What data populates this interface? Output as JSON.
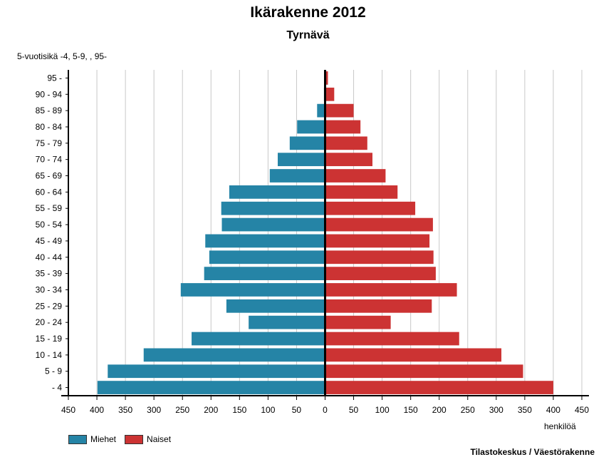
{
  "title": "Ikärakenne 2012",
  "subtitle": "Tyrnävä",
  "source": "Tilastokeskus / Väestörakenne",
  "chart_data": {
    "type": "bar",
    "orientation": "horizontal",
    "title": "Ikärakenne 2012",
    "subtitle": "Tyrnävä",
    "ylabel": "5-vuotisikä -4, 5-9, , 95-",
    "xlabel": "henkilöä",
    "categories": [
      "95 -",
      "90 - 94",
      "85 - 89",
      "80 - 84",
      "75 - 79",
      "70 - 74",
      "65 - 69",
      "60 - 64",
      "55 - 59",
      "50 - 54",
      "45 - 49",
      "40 - 44",
      "35 - 39",
      "30 - 34",
      "25 - 29",
      "20 - 24",
      "15 - 19",
      "10 - 14",
      "5 - 9",
      "- 4"
    ],
    "series": [
      {
        "name": "Miehet",
        "color": "#2584a6",
        "values": [
          1,
          2,
          14,
          49,
          62,
          83,
          97,
          168,
          182,
          181,
          210,
          203,
          212,
          253,
          173,
          134,
          234,
          318,
          381,
          399
        ]
      },
      {
        "name": "Naiset",
        "color": "#cc3333",
        "values": [
          5,
          16,
          50,
          62,
          74,
          83,
          106,
          127,
          158,
          189,
          183,
          190,
          194,
          231,
          187,
          115,
          235,
          309,
          347,
          400
        ]
      }
    ],
    "xlim": [
      -450,
      450
    ],
    "xticks": [
      -450,
      -400,
      -350,
      -300,
      -250,
      -200,
      -150,
      -100,
      -50,
      0,
      50,
      100,
      150,
      200,
      250,
      300,
      350,
      400,
      450
    ],
    "xtick_labels": [
      "450",
      "400",
      "350",
      "300",
      "250",
      "200",
      "150",
      "100",
      "50",
      "0",
      "50",
      "100",
      "150",
      "200",
      "250",
      "300",
      "350",
      "400",
      "450"
    ],
    "grid": "vertical",
    "legend": "bottom-left"
  }
}
